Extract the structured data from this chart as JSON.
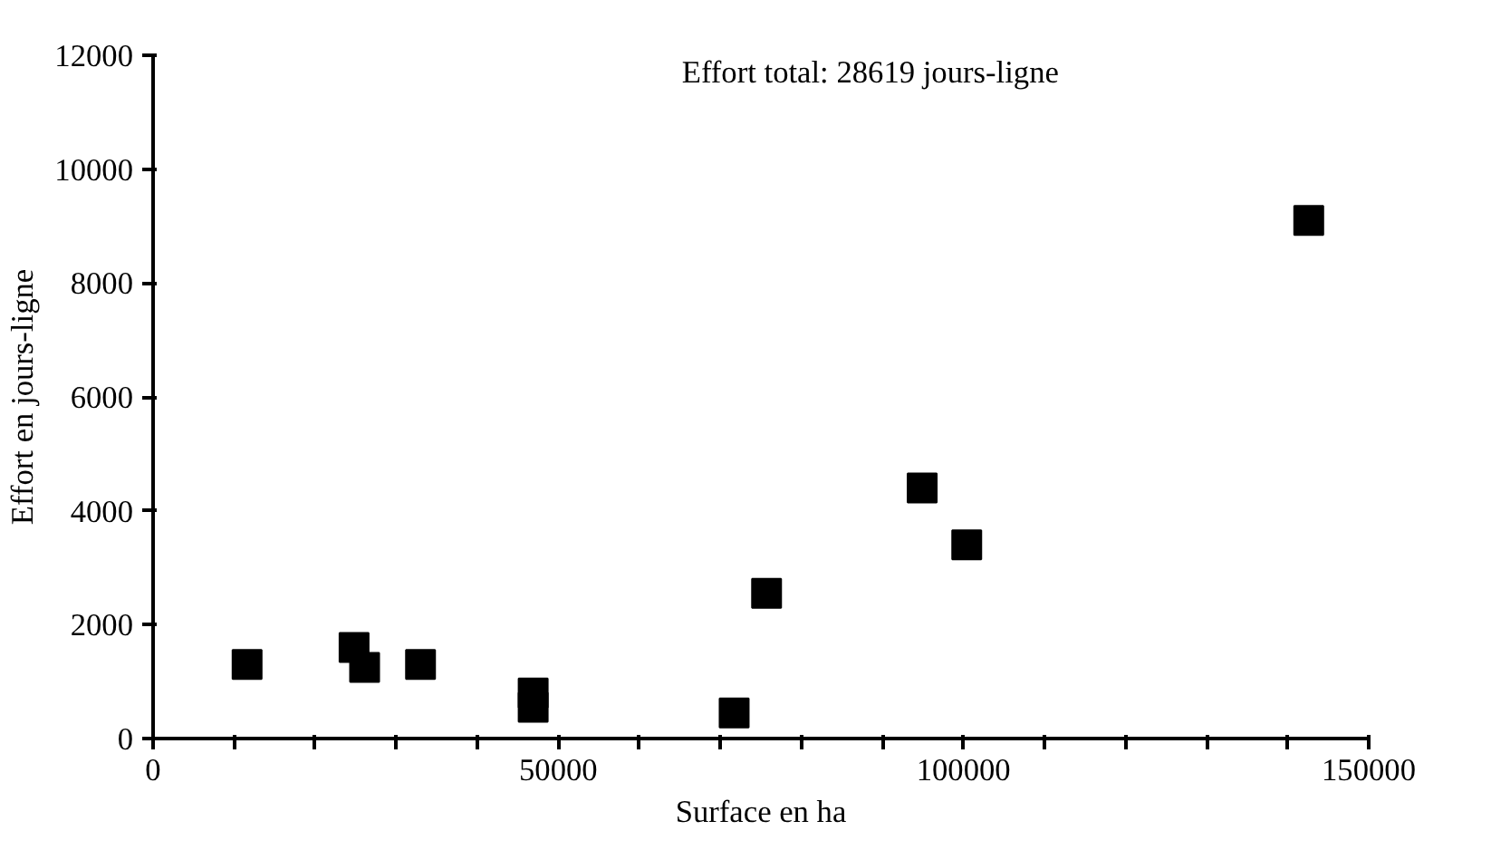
{
  "chart_data": {
    "type": "scatter",
    "xlabel": "Surface en ha",
    "ylabel": "Effort en jours-ligne",
    "annotations": [
      "Effort total: 28619 jours-ligne"
    ],
    "x": [
      11600,
      24800,
      26100,
      33000,
      46900,
      46900,
      71700,
      75700,
      94900,
      100400,
      142600
    ],
    "values": [
      1300,
      1600,
      1250,
      1300,
      800,
      550,
      450,
      2550,
      4400,
      3400,
      9100
    ],
    "color": "#000000",
    "marker": "square",
    "xlim": [
      0,
      150000
    ],
    "xticks": [
      0,
      {
        "value": 10000,
        "label": null
      },
      {
        "value": 20000,
        "label": null
      },
      {
        "value": 30000,
        "label": null
      },
      {
        "value": 40000,
        "label": null
      },
      50000,
      {
        "value": 60000,
        "label": null
      },
      {
        "value": 70000,
        "label": null
      },
      {
        "value": 80000,
        "label": null
      },
      {
        "value": 90000,
        "label": null
      },
      100000,
      {
        "value": 110000,
        "label": null
      },
      {
        "value": 120000,
        "label": null
      },
      {
        "value": 130000,
        "label": null
      },
      {
        "value": 140000,
        "label": null
      },
      150000
    ],
    "ylim": [
      0,
      12000
    ],
    "yticks": [
      0,
      2000,
      4000,
      6000,
      8000,
      10000,
      12000
    ],
    "grid": false
  }
}
